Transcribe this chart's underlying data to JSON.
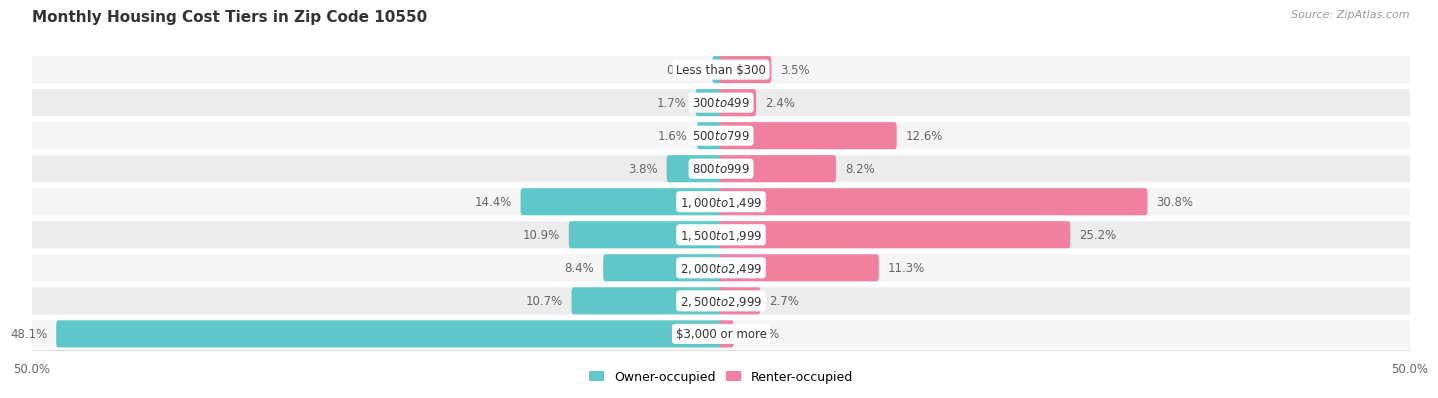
{
  "title": "Monthly Housing Cost Tiers in Zip Code 10550",
  "source": "Source: ZipAtlas.com",
  "categories": [
    "Less than $300",
    "$300 to $499",
    "$500 to $799",
    "$800 to $999",
    "$1,000 to $1,499",
    "$1,500 to $1,999",
    "$2,000 to $2,499",
    "$2,500 to $2,999",
    "$3,000 or more"
  ],
  "owner_values": [
    0.49,
    1.7,
    1.6,
    3.8,
    14.4,
    10.9,
    8.4,
    10.7,
    48.1
  ],
  "renter_values": [
    3.5,
    2.4,
    12.6,
    8.2,
    30.8,
    25.2,
    11.3,
    2.7,
    0.77
  ],
  "owner_color": "#5ec8c8",
  "renter_color": "#f07fa0",
  "row_bg_colors": [
    "#f5f5f5",
    "#ececec"
  ],
  "axis_limit": 50.0,
  "label_fontsize": 8.5,
  "title_fontsize": 11,
  "category_fontsize": 8.5,
  "legend_fontsize": 9,
  "source_fontsize": 8,
  "owner_label_color": "#666666",
  "renter_label_color": "#666666",
  "title_color": "#333333"
}
